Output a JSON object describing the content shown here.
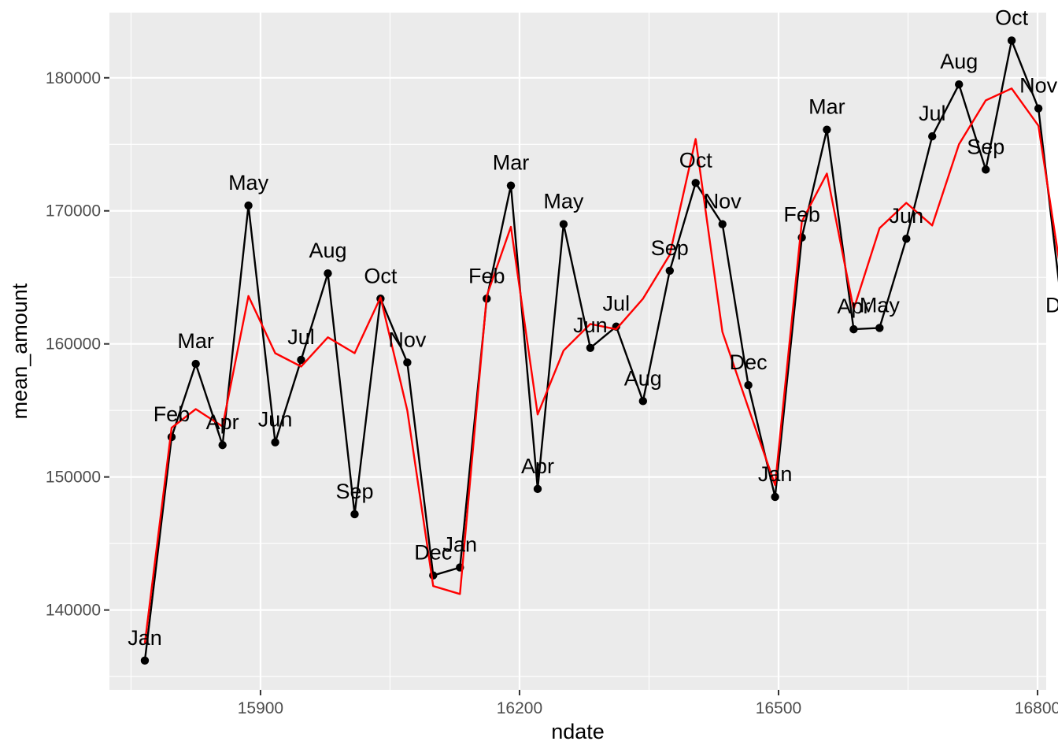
{
  "chart_data": {
    "type": "line",
    "xlabel": "ndate",
    "ylabel": "mean_amount",
    "xlim": [
      15725,
      16810
    ],
    "ylim": [
      134000,
      184900
    ],
    "x_ticks": [
      15900,
      16200,
      16500,
      16800
    ],
    "x_tick_labels": [
      "15900",
      "16200",
      "16500",
      "16800"
    ],
    "y_ticks": [
      140000,
      150000,
      160000,
      170000,
      180000
    ],
    "y_tick_labels": [
      "140000",
      "150000",
      "160000",
      "170000",
      "180000"
    ],
    "grid": true,
    "panel_background": "#ebebeb",
    "series": [
      {
        "color": "#000000",
        "markers": true,
        "labels": [
          "Jan",
          "Feb",
          "Mar",
          "Apr",
          "May",
          "Jun",
          "Jul",
          "Aug",
          "Sep",
          "Oct",
          "Nov",
          "Dec",
          "Jan",
          "Feb",
          "Mar",
          "Apr",
          "May",
          "Jun",
          "Jul",
          "Aug",
          "Sep",
          "Oct",
          "Nov",
          "Dec",
          "Jan",
          "Feb",
          "Mar",
          "Apr",
          "May",
          "Jun",
          "Jul",
          "Aug",
          "Sep",
          "Oct",
          "Nov",
          "Dec"
        ],
        "x": [
          15766,
          15797,
          15825,
          15856,
          15886,
          15917,
          15947,
          15978,
          16009,
          16039,
          16070,
          16100,
          16131,
          16162,
          16190,
          16221,
          16251,
          16282,
          16312,
          16343,
          16374,
          16404,
          16435,
          16465,
          16496,
          16527,
          16556,
          16587,
          16617,
          16648,
          16678,
          16709,
          16740,
          16770,
          16801,
          16831
        ],
        "values": [
          136200,
          153000,
          158500,
          152400,
          170400,
          152600,
          158800,
          165300,
          147200,
          163400,
          158600,
          142600,
          143200,
          163400,
          171900,
          149100,
          169000,
          159700,
          161300,
          155700,
          165500,
          172100,
          169000,
          156900,
          148500,
          168000,
          176100,
          161100,
          161200,
          167900,
          175600,
          179500,
          173100,
          182800,
          177700,
          161200
        ]
      },
      {
        "color": "#ff0000",
        "markers": false,
        "x": [
          15766,
          15797,
          15825,
          15856,
          15886,
          15917,
          15947,
          15978,
          16009,
          16039,
          16070,
          16100,
          16131,
          16162,
          16190,
          16221,
          16251,
          16282,
          16312,
          16343,
          16374,
          16404,
          16435,
          16465,
          16496,
          16527,
          16556,
          16587,
          16617,
          16648,
          16678,
          16709,
          16740,
          16770,
          16801,
          16831
        ],
        "values": [
          137500,
          153700,
          155100,
          153800,
          163600,
          159300,
          158300,
          160500,
          159300,
          163500,
          155000,
          141800,
          141200,
          163600,
          168800,
          154700,
          159500,
          161500,
          161100,
          163400,
          166700,
          175400,
          160900,
          155200,
          149400,
          169200,
          172800,
          162600,
          168700,
          170600,
          168900,
          175000,
          178300,
          179200,
          176400,
          163700
        ]
      }
    ]
  }
}
